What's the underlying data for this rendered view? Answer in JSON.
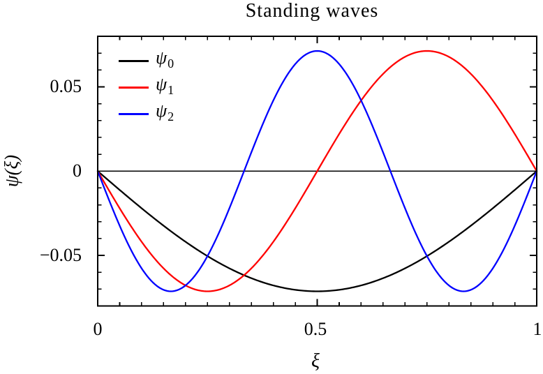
{
  "chart_data": {
    "type": "line",
    "title": "Standing waves",
    "xlabel": "ξ",
    "ylabel": "ψ(ξ)",
    "xlim": [
      0,
      1
    ],
    "ylim": [
      -0.08,
      0.08
    ],
    "x_major_ticks": [
      0,
      0.5,
      1
    ],
    "x_minor_step": 0.05,
    "y_major_ticks": [
      -0.05,
      0,
      0.05
    ],
    "y_minor_step": 0.01,
    "x_tick_labels": [
      "0",
      "0.5",
      "1"
    ],
    "y_tick_labels": [
      "0.05",
      "0",
      "−0.05"
    ],
    "grid": false,
    "zero_line": true,
    "legend_position": "top-left-inside",
    "axis_color": "#000000",
    "background_color": "#ffffff",
    "x_samples": [
      0,
      0.1,
      0.2,
      0.3,
      0.4,
      0.5,
      0.6,
      0.7,
      0.8,
      0.9,
      1
    ],
    "series": [
      {
        "name": "psi0",
        "symbol": "ψ",
        "subscript": "0",
        "color": "#000000",
        "formula": "-0.0713·sin(1·π·ξ)",
        "harmonic": 1,
        "amplitude": -0.0713,
        "y_samples": [
          0,
          -0.022,
          -0.0419,
          -0.0577,
          -0.0678,
          -0.0713,
          -0.0678,
          -0.0577,
          -0.0419,
          -0.022,
          0
        ]
      },
      {
        "name": "psi1",
        "symbol": "ψ",
        "subscript": "1",
        "color": "#ff0000",
        "formula": "-0.0713·sin(2·π·ξ)",
        "harmonic": 2,
        "amplitude": -0.0713,
        "y_samples": [
          0,
          -0.0419,
          -0.0678,
          -0.0678,
          -0.0419,
          0,
          0.0419,
          0.0678,
          0.0678,
          0.0419,
          0
        ]
      },
      {
        "name": "psi2",
        "symbol": "ψ",
        "subscript": "2",
        "color": "#0000ff",
        "formula": "-0.0713·sin(3·π·ξ)",
        "harmonic": 3,
        "amplitude": -0.0713,
        "y_samples": [
          0,
          -0.0577,
          -0.0678,
          -0.022,
          0.0419,
          0.0713,
          0.0419,
          -0.022,
          -0.0678,
          -0.0577,
          0
        ]
      }
    ]
  }
}
